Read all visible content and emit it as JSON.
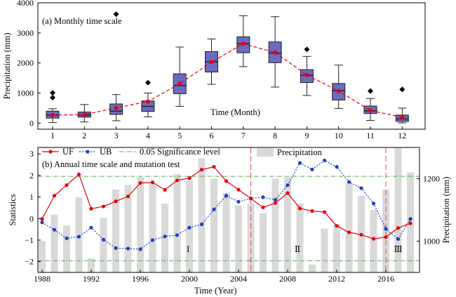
{
  "chart_data": [
    {
      "type": "box",
      "title": "(a) Monthly time scale",
      "xlabel": "Time (Month)",
      "ylabel": "Precipitation (mm)",
      "ylim": [
        -200,
        4000
      ],
      "yticks": [
        0,
        1000,
        2000,
        3000,
        4000
      ],
      "categories": [
        "1",
        "2",
        "3",
        "4",
        "5",
        "6",
        "7",
        "8",
        "9",
        "10",
        "11",
        "12"
      ],
      "boxes": [
        {
          "min": 20,
          "q1": 170,
          "median": 270,
          "q3": 400,
          "max": 480,
          "mean": 270,
          "outliers": [
            850,
            1010
          ]
        },
        {
          "min": 40,
          "q1": 200,
          "median": 270,
          "q3": 370,
          "max": 620,
          "mean": 280,
          "outliers": []
        },
        {
          "min": 80,
          "q1": 290,
          "median": 400,
          "q3": 640,
          "max": 950,
          "mean": 510,
          "outliers": [
            3620
          ]
        },
        {
          "min": 210,
          "q1": 390,
          "median": 560,
          "q3": 740,
          "max": 1000,
          "mean": 720,
          "outliers": [
            1350
          ]
        },
        {
          "min": 560,
          "q1": 980,
          "median": 1250,
          "q3": 1640,
          "max": 2530,
          "mean": 1310,
          "outliers": []
        },
        {
          "min": 1290,
          "q1": 1700,
          "median": 2040,
          "q3": 2380,
          "max": 2800,
          "mean": 2030,
          "outliers": []
        },
        {
          "min": 1880,
          "q1": 2340,
          "median": 2640,
          "q3": 2870,
          "max": 3570,
          "mean": 2640,
          "outliers": []
        },
        {
          "min": 1200,
          "q1": 2010,
          "median": 2330,
          "q3": 2700,
          "max": 3540,
          "mean": 2350,
          "outliers": []
        },
        {
          "min": 920,
          "q1": 1350,
          "median": 1590,
          "q3": 1780,
          "max": 2220,
          "mean": 1600,
          "outliers": [
            2450
          ]
        },
        {
          "min": 490,
          "q1": 770,
          "median": 1080,
          "q3": 1320,
          "max": 1930,
          "mean": 1070,
          "outliers": []
        },
        {
          "min": 90,
          "q1": 320,
          "median": 410,
          "q3": 570,
          "max": 820,
          "mean": 420,
          "outliers": [
            1070
          ]
        },
        {
          "min": 10,
          "q1": 60,
          "median": 140,
          "q3": 270,
          "max": 500,
          "mean": 200,
          "outliers": [
            1120
          ]
        }
      ]
    },
    {
      "type": "line+bar",
      "title": "(b) Annual time scale and mutation test",
      "xlabel": "Time (Year)",
      "ylabel_left": "Statistics",
      "ylabel_right": "Precipitation (mm)",
      "xlim": [
        1988,
        2018
      ],
      "xticks": [
        1988,
        1992,
        1996,
        2000,
        2004,
        2008,
        2012,
        2016
      ],
      "ylim_left": [
        -2.5,
        3.3
      ],
      "yticks_left": [
        -2,
        -1,
        0,
        1,
        2,
        3
      ],
      "ylim_right": [
        900,
        1300
      ],
      "yticks_right": [
        1000,
        1200
      ],
      "years": [
        1988,
        1989,
        1990,
        1991,
        1992,
        1993,
        1994,
        1995,
        1996,
        1997,
        1998,
        1999,
        2000,
        2001,
        2002,
        2003,
        2004,
        2005,
        2006,
        2007,
        2008,
        2009,
        2010,
        2011,
        2012,
        2013,
        2014,
        2015,
        2016,
        2017,
        2018
      ],
      "series": [
        {
          "name": "UF",
          "color": "#e8000b",
          "values": [
            -0.02,
            1.06,
            1.55,
            2.05,
            0.46,
            0.56,
            0.8,
            1.03,
            1.65,
            1.68,
            1.33,
            1.77,
            1.88,
            2.27,
            2.4,
            1.74,
            1.34,
            0.93,
            0.52,
            0.72,
            1.18,
            0.47,
            0.35,
            0.3,
            -0.34,
            -0.64,
            -0.75,
            -0.94,
            -0.86,
            -0.44,
            -0.22
          ]
        },
        {
          "name": "UB",
          "color": "#1f3fbf",
          "values": [
            -0.18,
            -0.52,
            -0.92,
            -0.84,
            -0.42,
            -0.98,
            -1.37,
            -1.39,
            -1.42,
            -1.0,
            -0.83,
            -0.77,
            -0.42,
            -0.27,
            0.42,
            1.06,
            0.78,
            0.94,
            0.99,
            0.87,
            1.55,
            2.58,
            2.28,
            2.7,
            2.4,
            1.7,
            1.41,
            0.7,
            -0.48,
            -0.95,
            -0.02
          ]
        },
        {
          "name": "0.05 Significance level",
          "color": "#5aa35a",
          "values": [
            1.96,
            -1.96
          ]
        }
      ],
      "bars": {
        "name": "Precipitation",
        "color": "#d9d9d9",
        "values": [
          1000,
          1085,
          1050,
          1140,
          945,
          1075,
          1165,
          1180,
          1205,
          1185,
          1120,
          1215,
          1195,
          1265,
          1200,
          1155,
          1115,
          1120,
          1090,
          1200,
          1205,
          1120,
          925,
          1040,
          1055,
          1185,
          1145,
          1100,
          1165,
          1310,
          1220
        ]
      },
      "annotations": [
        "I",
        "Ⅱ",
        "Ⅲ"
      ],
      "change_points": [
        2005,
        2016
      ]
    }
  ]
}
